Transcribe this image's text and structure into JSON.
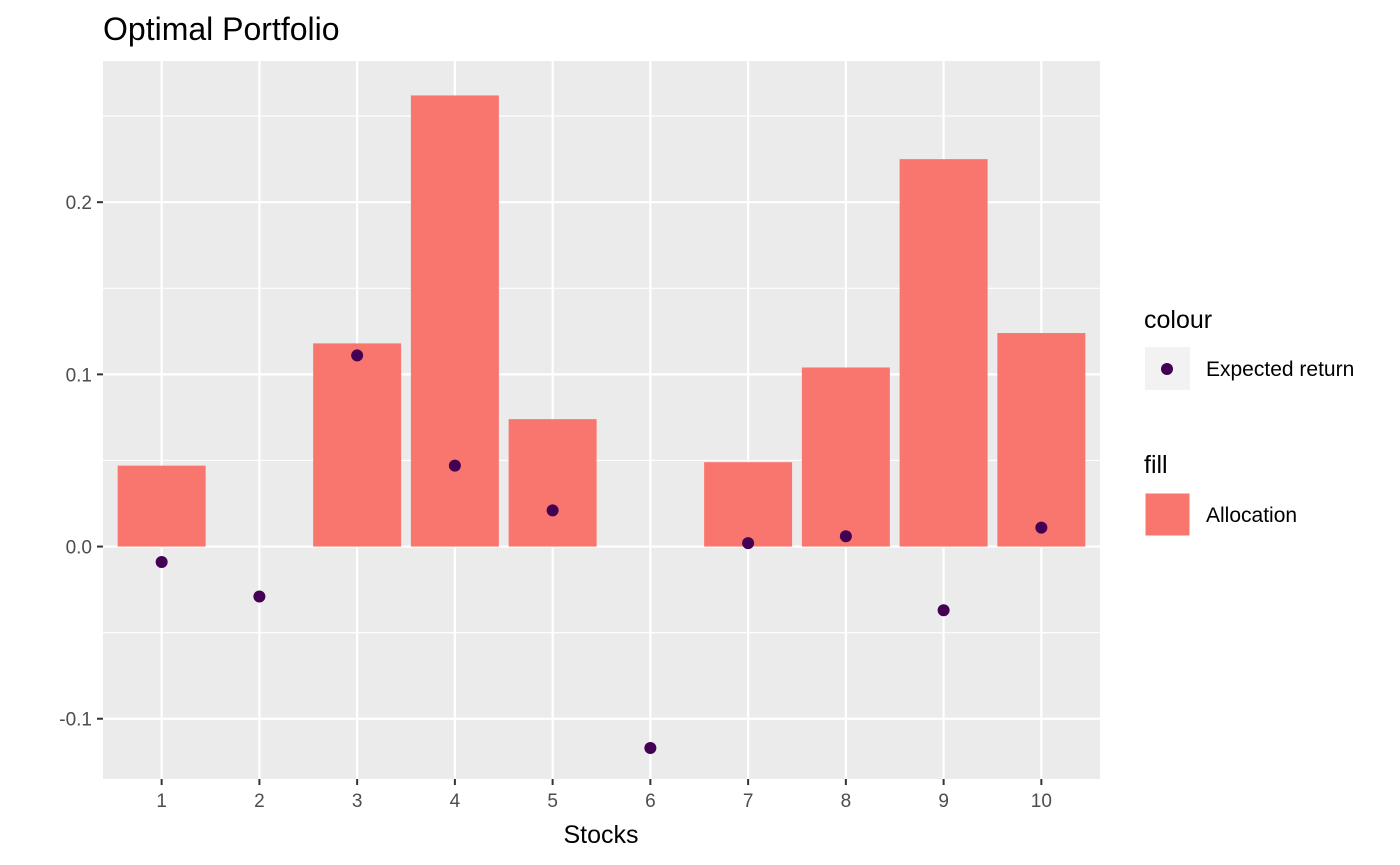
{
  "chart_data": {
    "type": "bar",
    "title": "Optimal Portfolio",
    "xlabel": "Stocks",
    "ylabel": "",
    "categories": [
      "1",
      "2",
      "3",
      "4",
      "5",
      "6",
      "7",
      "8",
      "9",
      "10"
    ],
    "series": [
      {
        "name": "Allocation",
        "kind": "bar",
        "values": [
          0.047,
          0.0,
          0.118,
          0.262,
          0.074,
          0.0,
          0.049,
          0.104,
          0.225,
          0.124
        ]
      },
      {
        "name": "Expected return",
        "kind": "point",
        "values": [
          -0.009,
          -0.029,
          0.111,
          0.047,
          0.021,
          -0.117,
          0.002,
          0.006,
          -0.037,
          0.011
        ]
      }
    ],
    "ylim": [
      -0.135,
      0.282
    ],
    "yticks": [
      -0.1,
      0.0,
      0.1,
      0.2
    ],
    "ytick_labels": [
      "-0.1",
      "0.0",
      "0.1",
      "0.2"
    ],
    "grid": true,
    "legend": {
      "placement": "right",
      "groups": [
        {
          "title": "colour",
          "label": "Expected return"
        },
        {
          "title": "fill",
          "label": "Allocation"
        }
      ]
    },
    "colors": {
      "bar": "#F8766D",
      "point": "#440154",
      "panel": "#EBEBEB",
      "grid": "#FFFFFF"
    }
  }
}
